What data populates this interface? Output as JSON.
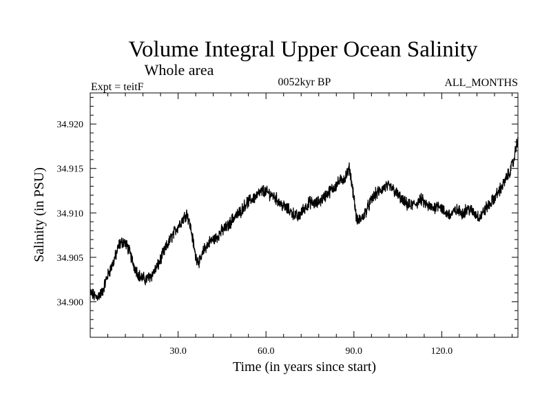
{
  "chart_data": {
    "type": "line",
    "title": "Volume Integral Upper Ocean Salinity",
    "subtitle": "Whole area",
    "experiment": "Expt = teitF",
    "period": "0052kyr BP",
    "months": "ALL_MONTHS",
    "xlabel": "Time (in years since start)",
    "ylabel": "Salinity (in PSU)",
    "xlim": [
      0,
      146
    ],
    "ylim": [
      34.896,
      34.9235
    ],
    "xticks": [
      30,
      60,
      90,
      120
    ],
    "xtick_labels": [
      "30.0",
      "60.0",
      "90.0",
      "120.0"
    ],
    "yticks": [
      34.9,
      34.905,
      34.91,
      34.915,
      34.92
    ],
    "ytick_labels": [
      "34.900",
      "34.905",
      "34.910",
      "34.915",
      "34.920"
    ],
    "noise_amplitude": 0.0011,
    "series": [
      {
        "name": "salinity",
        "x": [
          0,
          2,
          4,
          6,
          8,
          10,
          11.5,
          13,
          15,
          17,
          19,
          21,
          23,
          25,
          27,
          29,
          31,
          33,
          34.5,
          36,
          37.5,
          39,
          41,
          43,
          45,
          47,
          49,
          51,
          53,
          55,
          57,
          59,
          61,
          63,
          65,
          67,
          69,
          71,
          73,
          75,
          77,
          79,
          81,
          83,
          85,
          87,
          88.5,
          90,
          91,
          93,
          95,
          97,
          99,
          101,
          103,
          105,
          107,
          109,
          111,
          113,
          115,
          117,
          119,
          121,
          123,
          125,
          127,
          129,
          131,
          133,
          135,
          137,
          139,
          141,
          143,
          144.5,
          146
        ],
        "y": [
          34.901,
          34.9005,
          34.901,
          34.903,
          34.9045,
          34.9065,
          34.9068,
          34.906,
          34.904,
          34.9028,
          34.9025,
          34.903,
          34.904,
          34.9055,
          34.9068,
          34.908,
          34.909,
          34.91,
          34.908,
          34.905,
          34.9045,
          34.906,
          34.9068,
          34.9072,
          34.908,
          34.9085,
          34.9095,
          34.91,
          34.911,
          34.9115,
          34.912,
          34.9125,
          34.9122,
          34.9118,
          34.911,
          34.9105,
          34.91,
          34.9095,
          34.9105,
          34.9112,
          34.911,
          34.9115,
          34.9122,
          34.9128,
          34.9135,
          34.914,
          34.915,
          34.9118,
          34.909,
          34.9095,
          34.9108,
          34.912,
          34.9125,
          34.913,
          34.9128,
          34.912,
          34.9112,
          34.9108,
          34.911,
          34.9115,
          34.9108,
          34.9105,
          34.911,
          34.91,
          34.9098,
          34.9103,
          34.91,
          34.9105,
          34.91,
          34.9095,
          34.9105,
          34.9112,
          34.9122,
          34.9132,
          34.9145,
          34.9158,
          34.9185
        ]
      }
    ]
  }
}
